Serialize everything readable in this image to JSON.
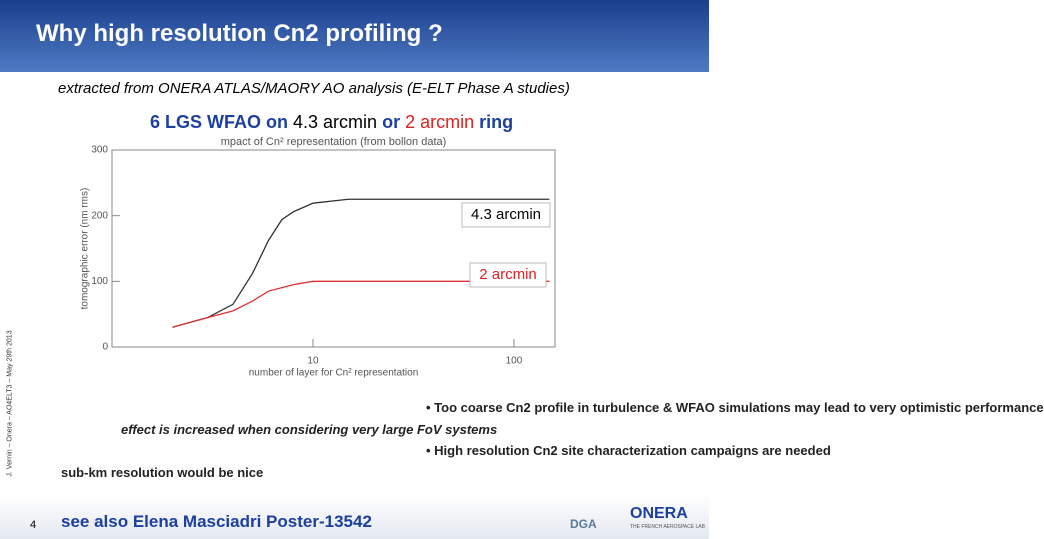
{
  "header": {
    "title": "Why high resolution Cn2 profiling ?"
  },
  "subtitle": "extracted from ONERA ATLAS/MAORY AO analysis (E-ELT Phase A studies)",
  "heading": {
    "part1": "6 LGS WFAO on",
    "part2": "4.3 arcmin",
    "part3": "or",
    "part4": "2 arcmin",
    "part5": "ring"
  },
  "chart_data": {
    "type": "line",
    "title": "mpact of Cn² representation (from bollon data)",
    "x_label": "number of layer for Cn² representation",
    "y_label": "tomographic error (nm rms)",
    "log_x": true,
    "xlim": [
      1,
      160
    ],
    "xticks": [
      10,
      100
    ],
    "ylim": [
      0,
      300
    ],
    "yticks": [
      0,
      100,
      200,
      300
    ],
    "series": [
      {
        "name": "4.3 arcmin",
        "color": "#333333",
        "x": [
          2,
          3,
          4,
          5,
          6,
          7,
          8,
          10,
          15,
          20,
          50,
          100,
          150
        ],
        "values": [
          30,
          45,
          65,
          112,
          162,
          194,
          206,
          219,
          225,
          225,
          225,
          225,
          225
        ]
      },
      {
        "name": "2 arcmin",
        "color": "#e03030",
        "x": [
          2,
          3,
          4,
          5,
          6,
          8,
          10,
          20,
          50,
          100,
          150
        ],
        "values": [
          30,
          45,
          55,
          70,
          85,
          95,
          100,
          100,
          100,
          100,
          100
        ]
      }
    ]
  },
  "bullets": [
    "• Too coarse Cn2 profile in turbulence & WFAO simulations may lead to very optimistic performance",
    "effect is increased when considering very large FoV systems",
    "• High resolution Cn2 site characterization campaigns are needed",
    "sub-km resolution would be nice"
  ],
  "side_text": "J. Vernin – Onera – AO4ELT3 – May 29th 2013",
  "page_number": "4",
  "footer": "see also Elena Masciadri Poster-13542",
  "logos": {
    "onera": "ONERA",
    "onera_sub": "THE FRENCH AEROSPACE LAB",
    "dga": "DGA"
  }
}
